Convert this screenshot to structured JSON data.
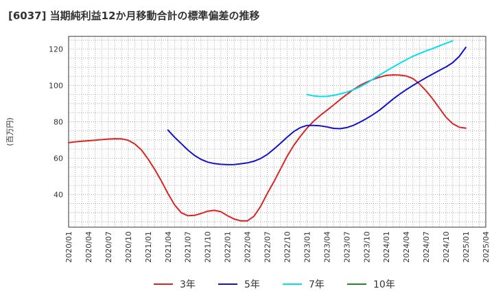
{
  "title": "[6037]  当期純利益12か月移動合計の標準偏差の推移",
  "chart_data": {
    "type": "line",
    "title": "[6037]  当期純利益12か月移動合計の標準偏差の推移",
    "ylabel": "(百万円)",
    "xlabel": "",
    "ylim": [
      22,
      127
    ],
    "yticks": [
      40,
      60,
      80,
      100,
      120
    ],
    "xticks": [
      "2020/01",
      "2020/04",
      "2020/07",
      "2020/10",
      "2021/01",
      "2021/04",
      "2021/07",
      "2021/10",
      "2022/01",
      "2022/04",
      "2022/07",
      "2022/10",
      "2023/01",
      "2023/04",
      "2023/07",
      "2023/10",
      "2024/01",
      "2024/04",
      "2024/07",
      "2024/10",
      "2025/01",
      "2025/04"
    ],
    "grid": true,
    "legend_position": "bottom",
    "series": [
      {
        "name": "3年",
        "color": "#dd2222",
        "points": [
          [
            "2020/01",
            68.5
          ],
          [
            "2020/02",
            69.0
          ],
          [
            "2020/03",
            69.3
          ],
          [
            "2020/04",
            69.6
          ],
          [
            "2020/05",
            69.9
          ],
          [
            "2020/06",
            70.2
          ],
          [
            "2020/07",
            70.5
          ],
          [
            "2020/08",
            70.7
          ],
          [
            "2020/09",
            70.6
          ],
          [
            "2020/10",
            69.8
          ],
          [
            "2020/11",
            67.8
          ],
          [
            "2020/12",
            64.5
          ],
          [
            "2021/01",
            59.5
          ],
          [
            "2021/02",
            53.8
          ],
          [
            "2021/03",
            47.5
          ],
          [
            "2021/04",
            40.5
          ],
          [
            "2021/05",
            34.3
          ],
          [
            "2021/06",
            30.0
          ],
          [
            "2021/07",
            28.3
          ],
          [
            "2021/08",
            28.5
          ],
          [
            "2021/09",
            29.5
          ],
          [
            "2021/10",
            30.8
          ],
          [
            "2021/11",
            31.3
          ],
          [
            "2021/12",
            30.5
          ],
          [
            "2022/01",
            28.3
          ],
          [
            "2022/02",
            26.5
          ],
          [
            "2022/03",
            25.5
          ],
          [
            "2022/04",
            25.5
          ],
          [
            "2022/05",
            28.0
          ],
          [
            "2022/06",
            33.5
          ],
          [
            "2022/07",
            40.5
          ],
          [
            "2022/08",
            47.0
          ],
          [
            "2022/09",
            54.0
          ],
          [
            "2022/10",
            61.0
          ],
          [
            "2022/11",
            67.0
          ],
          [
            "2022/12",
            72.0
          ],
          [
            "2023/01",
            76.5
          ],
          [
            "2023/02",
            80.3
          ],
          [
            "2023/03",
            83.5
          ],
          [
            "2023/04",
            86.3
          ],
          [
            "2023/05",
            89.2
          ],
          [
            "2023/06",
            92.2
          ],
          [
            "2023/07",
            95.0
          ],
          [
            "2023/08",
            97.7
          ],
          [
            "2023/09",
            100.0
          ],
          [
            "2023/10",
            101.8
          ],
          [
            "2023/11",
            103.3
          ],
          [
            "2023/12",
            104.6
          ],
          [
            "2024/01",
            105.5
          ],
          [
            "2024/02",
            105.8
          ],
          [
            "2024/03",
            105.7
          ],
          [
            "2024/04",
            105.2
          ],
          [
            "2024/05",
            103.8
          ],
          [
            "2024/06",
            100.8
          ],
          [
            "2024/07",
            97.0
          ],
          [
            "2024/08",
            92.5
          ],
          [
            "2024/09",
            87.5
          ],
          [
            "2024/10",
            82.5
          ],
          [
            "2024/11",
            79.0
          ],
          [
            "2024/12",
            77.0
          ],
          [
            "2025/01",
            76.5
          ]
        ]
      },
      {
        "name": "5年",
        "color": "#1111cc",
        "points": [
          [
            "2021/04",
            75.5
          ],
          [
            "2021/05",
            71.5
          ],
          [
            "2021/06",
            68.0
          ],
          [
            "2021/07",
            64.5
          ],
          [
            "2021/08",
            61.5
          ],
          [
            "2021/09",
            59.3
          ],
          [
            "2021/10",
            57.8
          ],
          [
            "2021/11",
            57.0
          ],
          [
            "2021/12",
            56.6
          ],
          [
            "2022/01",
            56.4
          ],
          [
            "2022/02",
            56.5
          ],
          [
            "2022/03",
            56.9
          ],
          [
            "2022/04",
            57.4
          ],
          [
            "2022/05",
            58.3
          ],
          [
            "2022/06",
            59.8
          ],
          [
            "2022/07",
            62.0
          ],
          [
            "2022/08",
            65.0
          ],
          [
            "2022/09",
            68.2
          ],
          [
            "2022/10",
            71.5
          ],
          [
            "2022/11",
            74.6
          ],
          [
            "2022/12",
            76.8
          ],
          [
            "2023/01",
            78.0
          ],
          [
            "2023/02",
            78.0
          ],
          [
            "2023/03",
            77.8
          ],
          [
            "2023/04",
            77.2
          ],
          [
            "2023/05",
            76.4
          ],
          [
            "2023/06",
            76.2
          ],
          [
            "2023/07",
            76.8
          ],
          [
            "2023/08",
            78.0
          ],
          [
            "2023/09",
            79.8
          ],
          [
            "2023/10",
            81.8
          ],
          [
            "2023/11",
            84.0
          ],
          [
            "2023/12",
            86.5
          ],
          [
            "2024/01",
            89.5
          ],
          [
            "2024/02",
            92.5
          ],
          [
            "2024/03",
            95.2
          ],
          [
            "2024/04",
            97.7
          ],
          [
            "2024/05",
            100.0
          ],
          [
            "2024/06",
            102.2
          ],
          [
            "2024/07",
            104.3
          ],
          [
            "2024/08",
            106.3
          ],
          [
            "2024/09",
            108.3
          ],
          [
            "2024/10",
            110.2
          ],
          [
            "2024/11",
            112.5
          ],
          [
            "2024/12",
            116.0
          ],
          [
            "2025/01",
            121.0
          ]
        ]
      },
      {
        "name": "7年",
        "color": "#00e0ee",
        "points": [
          [
            "2023/01",
            95.0
          ],
          [
            "2023/02",
            94.2
          ],
          [
            "2023/03",
            93.9
          ],
          [
            "2023/04",
            94.0
          ],
          [
            "2023/05",
            94.5
          ],
          [
            "2023/06",
            95.3
          ],
          [
            "2023/07",
            96.3
          ],
          [
            "2023/08",
            97.6
          ],
          [
            "2023/09",
            99.2
          ],
          [
            "2023/10",
            101.2
          ],
          [
            "2023/11",
            103.5
          ],
          [
            "2023/12",
            105.8
          ],
          [
            "2024/01",
            108.0
          ],
          [
            "2024/02",
            110.1
          ],
          [
            "2024/03",
            112.2
          ],
          [
            "2024/04",
            114.2
          ],
          [
            "2024/05",
            116.0
          ],
          [
            "2024/06",
            117.6
          ],
          [
            "2024/07",
            119.0
          ],
          [
            "2024/08",
            120.3
          ],
          [
            "2024/09",
            121.8
          ],
          [
            "2024/10",
            123.2
          ],
          [
            "2024/11",
            124.5
          ]
        ]
      },
      {
        "name": "10年",
        "color": "#228822",
        "points": []
      }
    ]
  }
}
